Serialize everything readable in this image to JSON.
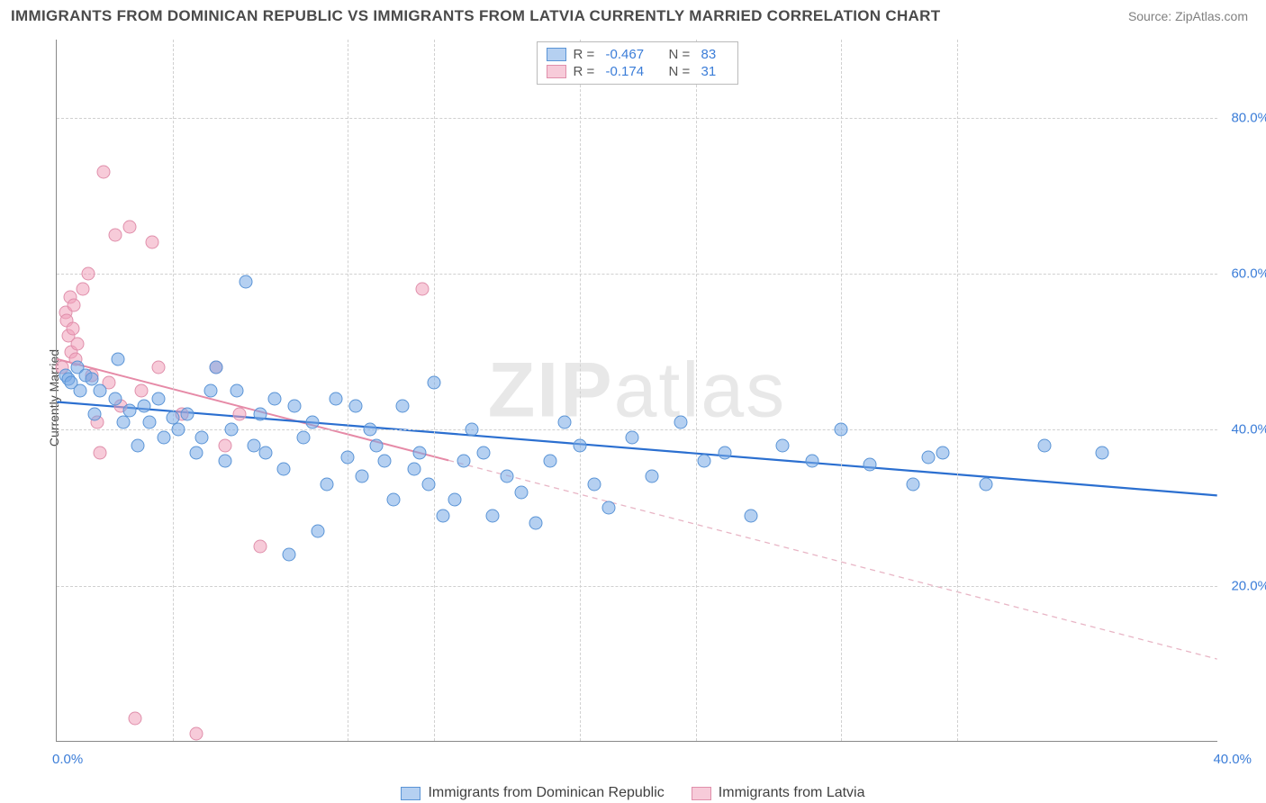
{
  "title": "IMMIGRANTS FROM DOMINICAN REPUBLIC VS IMMIGRANTS FROM LATVIA CURRENTLY MARRIED CORRELATION CHART",
  "source": "Source: ZipAtlas.com",
  "y_axis_label": "Currently Married",
  "watermark": {
    "bold": "ZIP",
    "rest": "atlas"
  },
  "colors": {
    "series_a_fill": "rgba(120,170,230,0.55)",
    "series_a_stroke": "#5a94d6",
    "series_b_fill": "rgba(240,160,185,0.55)",
    "series_b_stroke": "#e08fab",
    "trend_a": "#2b6fd0",
    "trend_b": "#e68aa7",
    "axis_label": "#3b7dd8",
    "grid": "#d0d0d0"
  },
  "chart": {
    "type": "scatter",
    "xlim": [
      0,
      40
    ],
    "ylim": [
      0,
      90
    ],
    "x_ticks": [
      0,
      40
    ],
    "x_tick_labels": [
      "0.0%",
      "40.0%"
    ],
    "x_minor_ticks": [
      4,
      10,
      13,
      18,
      22,
      27,
      31
    ],
    "y_ticks": [
      20,
      40,
      60,
      80
    ],
    "y_tick_labels": [
      "20.0%",
      "40.0%",
      "60.0%",
      "80.0%"
    ],
    "marker_size": 15
  },
  "legend_top": {
    "rows": [
      {
        "swatch_fill": "rgba(120,170,230,0.55)",
        "swatch_stroke": "#5a94d6",
        "r": "-0.467",
        "n": "83"
      },
      {
        "swatch_fill": "rgba(240,160,185,0.55)",
        "swatch_stroke": "#e08fab",
        "r": "-0.174",
        "n": "31"
      }
    ],
    "r_label": "R =",
    "n_label": "N ="
  },
  "legend_bottom": {
    "items": [
      {
        "label": "Immigrants from Dominican Republic",
        "fill": "rgba(120,170,230,0.55)",
        "stroke": "#5a94d6"
      },
      {
        "label": "Immigrants from Latvia",
        "fill": "rgba(240,160,185,0.55)",
        "stroke": "#e08fab"
      }
    ]
  },
  "trend_lines": {
    "a": {
      "x1": 0,
      "y1": 43.5,
      "x2": 40,
      "y2": 31.5,
      "color": "#2b6fd0",
      "width": 2.2
    },
    "b_solid": {
      "x1": 0,
      "y1": 49.0,
      "x2": 13.5,
      "y2": 36.0,
      "color": "#e68aa7",
      "width": 2
    },
    "b_dash": {
      "x1": 13.5,
      "y1": 36.0,
      "x2": 40,
      "y2": 10.5,
      "color": "#e8b5c5",
      "width": 1.3,
      "dash": "6,5"
    }
  },
  "series_a_points": [
    [
      0.3,
      47
    ],
    [
      0.4,
      46.5
    ],
    [
      0.5,
      46
    ],
    [
      0.7,
      48
    ],
    [
      0.8,
      45
    ],
    [
      1.0,
      47
    ],
    [
      1.2,
      46.5
    ],
    [
      1.3,
      42
    ],
    [
      1.5,
      45
    ],
    [
      2.0,
      44
    ],
    [
      2.1,
      49
    ],
    [
      2.3,
      41
    ],
    [
      2.5,
      42.5
    ],
    [
      2.8,
      38
    ],
    [
      3.0,
      43
    ],
    [
      3.2,
      41
    ],
    [
      3.5,
      44
    ],
    [
      3.7,
      39
    ],
    [
      4.0,
      41.5
    ],
    [
      4.2,
      40
    ],
    [
      4.5,
      42
    ],
    [
      4.8,
      37
    ],
    [
      5.0,
      39
    ],
    [
      5.3,
      45
    ],
    [
      5.5,
      48
    ],
    [
      5.8,
      36
    ],
    [
      6.0,
      40
    ],
    [
      6.2,
      45
    ],
    [
      6.5,
      59
    ],
    [
      6.8,
      38
    ],
    [
      7.0,
      42
    ],
    [
      7.2,
      37
    ],
    [
      7.5,
      44
    ],
    [
      7.8,
      35
    ],
    [
      8.0,
      24
    ],
    [
      8.2,
      43
    ],
    [
      8.5,
      39
    ],
    [
      8.8,
      41
    ],
    [
      9.0,
      27
    ],
    [
      9.3,
      33
    ],
    [
      9.6,
      44
    ],
    [
      10,
      36.5
    ],
    [
      10.3,
      43
    ],
    [
      10.5,
      34
    ],
    [
      10.8,
      40
    ],
    [
      11,
      38
    ],
    [
      11.3,
      36
    ],
    [
      11.6,
      31
    ],
    [
      11.9,
      43
    ],
    [
      12.3,
      35
    ],
    [
      12.5,
      37
    ],
    [
      12.8,
      33
    ],
    [
      13,
      46
    ],
    [
      13.3,
      29
    ],
    [
      13.7,
      31
    ],
    [
      14,
      36
    ],
    [
      14.3,
      40
    ],
    [
      14.7,
      37
    ],
    [
      15,
      29
    ],
    [
      15.5,
      34
    ],
    [
      16,
      32
    ],
    [
      16.5,
      28
    ],
    [
      17,
      36
    ],
    [
      17.5,
      41
    ],
    [
      18,
      38
    ],
    [
      18.5,
      33
    ],
    [
      19,
      30
    ],
    [
      19.8,
      39
    ],
    [
      20.5,
      34
    ],
    [
      21.5,
      41
    ],
    [
      22.3,
      36
    ],
    [
      23,
      37
    ],
    [
      23.9,
      29
    ],
    [
      25,
      38
    ],
    [
      26,
      36
    ],
    [
      27,
      40
    ],
    [
      28,
      35.5
    ],
    [
      29.5,
      33
    ],
    [
      30,
      36.5
    ],
    [
      30.5,
      37
    ],
    [
      32,
      33
    ],
    [
      34,
      38
    ],
    [
      36,
      37
    ]
  ],
  "series_b_points": [
    [
      0.2,
      48
    ],
    [
      0.3,
      55
    ],
    [
      0.35,
      54
    ],
    [
      0.4,
      52
    ],
    [
      0.45,
      57
    ],
    [
      0.5,
      50
    ],
    [
      0.55,
      53
    ],
    [
      0.6,
      56
    ],
    [
      0.65,
      49
    ],
    [
      0.7,
      51
    ],
    [
      0.9,
      58
    ],
    [
      1.1,
      60
    ],
    [
      1.2,
      47
    ],
    [
      1.4,
      41
    ],
    [
      1.5,
      37
    ],
    [
      1.6,
      73
    ],
    [
      1.8,
      46
    ],
    [
      2.0,
      65
    ],
    [
      2.2,
      43
    ],
    [
      2.5,
      66
    ],
    [
      2.7,
      3
    ],
    [
      2.9,
      45
    ],
    [
      3.3,
      64
    ],
    [
      3.5,
      48
    ],
    [
      4.3,
      42
    ],
    [
      4.8,
      1
    ],
    [
      5.5,
      48
    ],
    [
      5.8,
      38
    ],
    [
      6.3,
      42
    ],
    [
      7.0,
      25
    ],
    [
      12.6,
      58
    ]
  ]
}
